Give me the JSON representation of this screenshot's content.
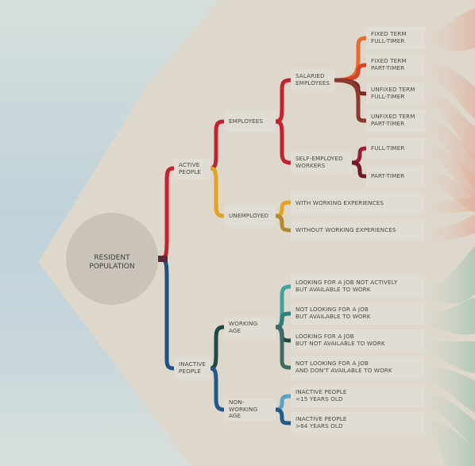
{
  "colors": {
    "background": "#c7d6db",
    "panel": "#ddd7cc",
    "root": "#cac3b9",
    "active": "#c8202e",
    "inactive": "#1d5288",
    "unemployed": "#e2a51c",
    "working_age": "#1f4a44",
    "non_working_age": "#1f5a8a"
  },
  "root": {
    "label": "RESIDENT\nPOPULATION"
  },
  "level1": {
    "active": "ACTIVE\nPEOPLE",
    "inactive": "INACTIVE\nPEOPLE"
  },
  "level2": {
    "employees": "EMPLOYEES",
    "unemployed": "UNEMPLOYED",
    "working_age": "WORKING\nAGE",
    "non_working_age": "NON-WORKING\nAGE"
  },
  "level3": {
    "salaried": "SALARIED\nEMPLOYEES",
    "self_employed": "SELF-EMPLOYED\nWORKERS",
    "with_exp": "WITH WORKING EXPERIENCES",
    "without_exp": "WITHOUT WORKING EXPERIENCES",
    "looking_not_active": "LOOKING FOR A JOB NOT ACTIVELY\nBUT AVAILABLE TO WORK",
    "not_looking_available": "NOT LOOKING FOR A JOB\nBUT AVAILABLE TO WORK",
    "looking_not_available": "LOOKING FOR A JOB\nBUT NOT AVAILABLE TO WORK",
    "not_looking_not_available": "NOT LOOKING FOR A JOB\nAND DON'T AVAILABLE TO WORK",
    "inactive_under15": "INACTIVE PEOPLE\n<15 YEARS OLD",
    "inactive_over64": "INACTIVE PEOPLE\n>64 YEARS OLD"
  },
  "level4": {
    "fixed_full": "FIXED TERM\nFULL-TIMER",
    "fixed_part": "FIXED TERM\nPART-TIMER",
    "unfixed_full": "UNFIXED TERM\nFULL-TIMER",
    "unfixed_part": "UNFIXED TERM\nPART-TIMER",
    "full_timer": "FULL-TIMER",
    "part_timer": "PART-TIMER"
  }
}
